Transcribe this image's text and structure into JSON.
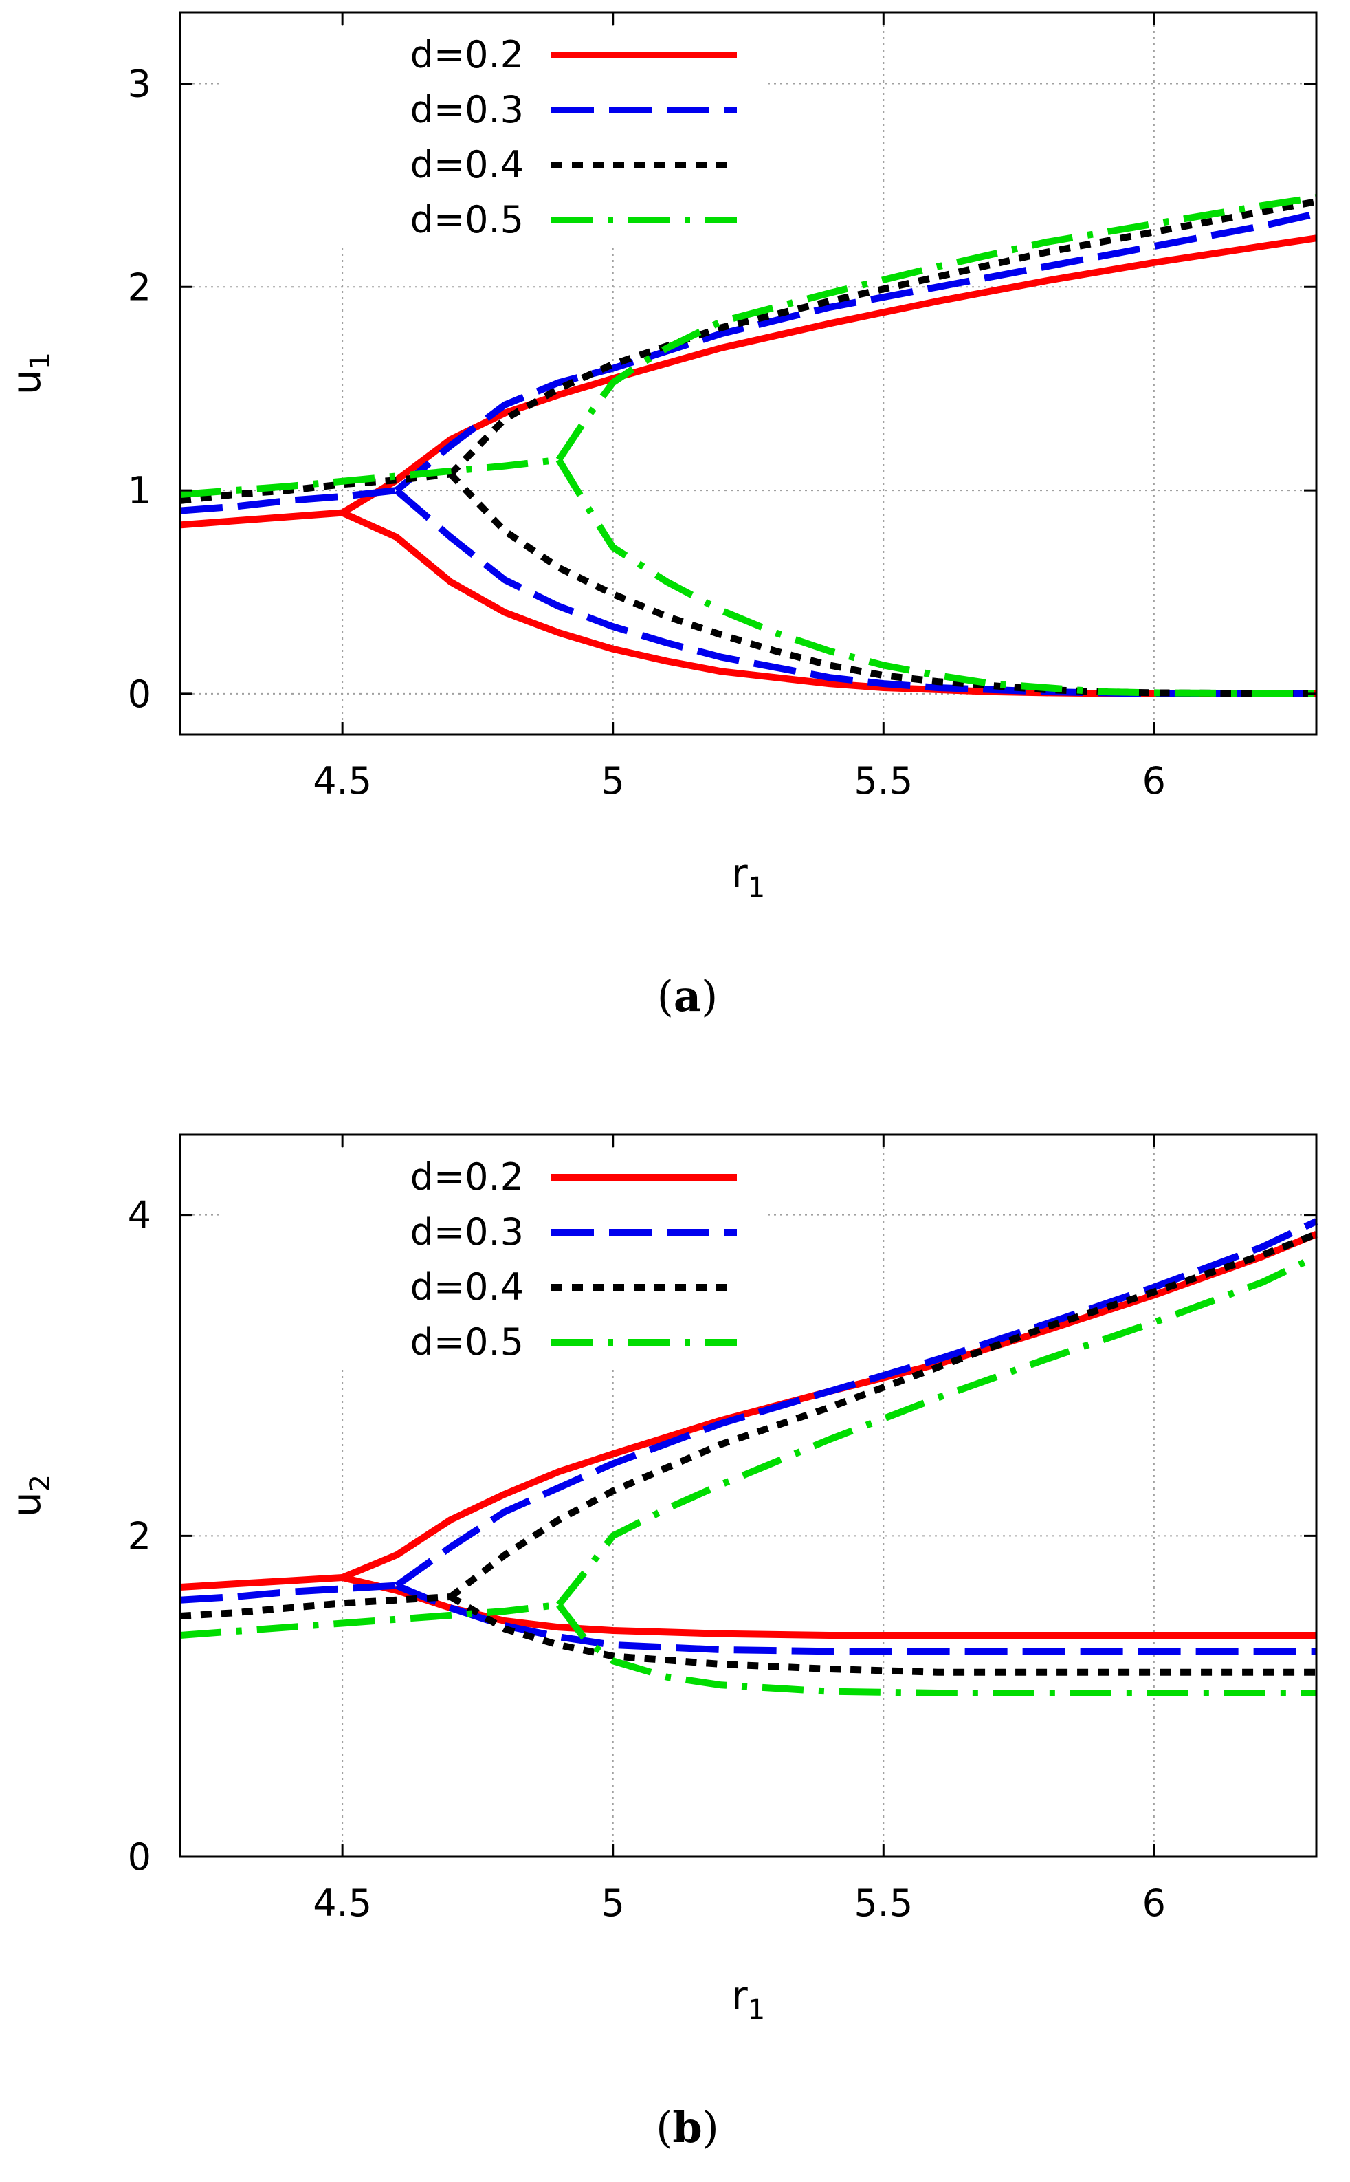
{
  "colors": {
    "d02": "#ff0000",
    "d03": "#0000ee",
    "d04": "#000000",
    "d05": "#00dd00"
  },
  "chart_data": [
    {
      "id": "a",
      "type": "line",
      "caption_open": "(",
      "caption_letter": "a",
      "caption_close": ")",
      "xlabel": "r",
      "xlabel_sub": "1",
      "ylabel": "u",
      "ylabel_sub": "1",
      "xlim": [
        4.2,
        6.3
      ],
      "ylim": [
        -0.2,
        3.35
      ],
      "xticks": [
        4.5,
        5,
        5.5,
        6
      ],
      "xtick_labels": [
        "4.5",
        "5",
        "5.5",
        "6"
      ],
      "yticks": [
        0,
        1,
        2,
        3
      ],
      "ytick_labels": [
        "0",
        "1",
        "2",
        "3"
      ],
      "grid": true,
      "legend_position": "top-left",
      "series": [
        {
          "name": "d=0.2",
          "color_key": "d02",
          "dash": "solid",
          "lines": [
            {
              "x": [
                4.2,
                4.3,
                4.4,
                4.5
              ],
              "y": [
                0.83,
                0.85,
                0.87,
                0.89
              ]
            },
            {
              "x": [
                4.5,
                4.6,
                4.7,
                4.8,
                4.9,
                5.0,
                5.2,
                5.4,
                5.6,
                5.8,
                6.0,
                6.2,
                6.3
              ],
              "y": [
                0.89,
                1.05,
                1.25,
                1.38,
                1.47,
                1.55,
                1.7,
                1.82,
                1.93,
                2.03,
                2.12,
                2.2,
                2.24
              ]
            },
            {
              "x": [
                4.5,
                4.6,
                4.7,
                4.8,
                4.9,
                5.0,
                5.1,
                5.2,
                5.3,
                5.4,
                5.5,
                5.6,
                5.7,
                5.8,
                5.9,
                6.0,
                6.3
              ],
              "y": [
                0.89,
                0.77,
                0.55,
                0.4,
                0.3,
                0.22,
                0.16,
                0.11,
                0.08,
                0.05,
                0.03,
                0.02,
                0.01,
                0.005,
                0.002,
                0.0,
                0.0
              ]
            }
          ]
        },
        {
          "name": "d=0.3",
          "color_key": "d03",
          "dash": "long-dash",
          "lines": [
            {
              "x": [
                4.2,
                4.3,
                4.4,
                4.5,
                4.6
              ],
              "y": [
                0.9,
                0.92,
                0.95,
                0.97,
                1.0
              ]
            },
            {
              "x": [
                4.6,
                4.7,
                4.8,
                4.9,
                5.0,
                5.2,
                5.4,
                5.6,
                5.8,
                6.0,
                6.2,
                6.3
              ],
              "y": [
                1.0,
                1.22,
                1.42,
                1.53,
                1.6,
                1.77,
                1.9,
                2.0,
                2.1,
                2.2,
                2.3,
                2.36
              ]
            },
            {
              "x": [
                4.6,
                4.7,
                4.8,
                4.9,
                5.0,
                5.1,
                5.2,
                5.3,
                5.4,
                5.5,
                5.6,
                5.7,
                5.8,
                5.9,
                6.0,
                6.3
              ],
              "y": [
                1.0,
                0.77,
                0.56,
                0.43,
                0.33,
                0.25,
                0.18,
                0.13,
                0.08,
                0.05,
                0.03,
                0.02,
                0.01,
                0.005,
                0.0,
                0.0
              ]
            }
          ]
        },
        {
          "name": "d=0.4",
          "color_key": "d04",
          "dash": "short-dash",
          "lines": [
            {
              "x": [
                4.2,
                4.3,
                4.4,
                4.5,
                4.6,
                4.7
              ],
              "y": [
                0.95,
                0.98,
                1.0,
                1.03,
                1.05,
                1.08
              ]
            },
            {
              "x": [
                4.7,
                4.8,
                4.9,
                5.0,
                5.2,
                5.4,
                5.6,
                5.8,
                6.0,
                6.2,
                6.3
              ],
              "y": [
                1.08,
                1.35,
                1.5,
                1.62,
                1.8,
                1.93,
                2.05,
                2.17,
                2.27,
                2.37,
                2.42
              ]
            },
            {
              "x": [
                4.7,
                4.8,
                4.9,
                5.0,
                5.1,
                5.2,
                5.3,
                5.4,
                5.5,
                5.6,
                5.7,
                5.8,
                5.9,
                6.0,
                6.3
              ],
              "y": [
                1.08,
                0.8,
                0.62,
                0.49,
                0.38,
                0.29,
                0.21,
                0.14,
                0.09,
                0.06,
                0.04,
                0.02,
                0.01,
                0.005,
                0.0
              ]
            }
          ]
        },
        {
          "name": "d=0.5",
          "color_key": "d05",
          "dash": "dash-dot",
          "lines": [
            {
              "x": [
                4.2,
                4.4,
                4.6,
                4.8,
                4.9
              ],
              "y": [
                0.98,
                1.02,
                1.07,
                1.12,
                1.15
              ]
            },
            {
              "x": [
                4.9,
                4.95,
                5.0,
                5.05,
                5.1,
                5.2,
                5.4,
                5.6,
                5.8,
                6.0,
                6.2,
                6.3
              ],
              "y": [
                1.15,
                1.35,
                1.53,
                1.62,
                1.7,
                1.83,
                1.97,
                2.1,
                2.22,
                2.31,
                2.4,
                2.44
              ]
            },
            {
              "x": [
                4.9,
                4.95,
                5.0,
                5.1,
                5.2,
                5.3,
                5.4,
                5.5,
                5.6,
                5.7,
                5.8,
                5.9,
                6.0,
                6.3
              ],
              "y": [
                1.15,
                0.93,
                0.72,
                0.55,
                0.41,
                0.3,
                0.21,
                0.14,
                0.09,
                0.05,
                0.03,
                0.01,
                0.005,
                0.0
              ]
            }
          ]
        }
      ]
    },
    {
      "id": "b",
      "type": "line",
      "caption_open": "(",
      "caption_letter": "b",
      "caption_close": ")",
      "xlabel": "r",
      "xlabel_sub": "1",
      "ylabel": "u",
      "ylabel_sub": "2",
      "xlim": [
        4.2,
        6.3
      ],
      "ylim": [
        0,
        4.5
      ],
      "xticks": [
        4.5,
        5,
        5.5,
        6
      ],
      "xtick_labels": [
        "4.5",
        "5",
        "5.5",
        "6"
      ],
      "yticks": [
        0,
        2,
        4
      ],
      "ytick_labels": [
        "0",
        "2",
        "4"
      ],
      "grid": true,
      "legend_position": "top-left",
      "series": [
        {
          "name": "d=0.2",
          "color_key": "d02",
          "dash": "solid",
          "lines": [
            {
              "x": [
                4.2,
                4.3,
                4.4,
                4.5
              ],
              "y": [
                1.68,
                1.7,
                1.72,
                1.74
              ]
            },
            {
              "x": [
                4.5,
                4.6,
                4.7,
                4.8,
                4.9,
                5.0,
                5.2,
                5.4,
                5.6,
                5.8,
                6.0,
                6.2,
                6.3
              ],
              "y": [
                1.74,
                1.88,
                2.1,
                2.26,
                2.4,
                2.51,
                2.72,
                2.9,
                3.07,
                3.28,
                3.5,
                3.74,
                3.88
              ]
            },
            {
              "x": [
                4.5,
                4.6,
                4.7,
                4.8,
                4.9,
                5.0,
                5.2,
                5.4,
                5.6,
                5.8,
                6.0,
                6.3
              ],
              "y": [
                1.74,
                1.66,
                1.55,
                1.47,
                1.43,
                1.41,
                1.39,
                1.38,
                1.38,
                1.38,
                1.38,
                1.38
              ]
            }
          ]
        },
        {
          "name": "d=0.3",
          "color_key": "d03",
          "dash": "long-dash",
          "lines": [
            {
              "x": [
                4.2,
                4.3,
                4.4,
                4.5,
                4.6
              ],
              "y": [
                1.6,
                1.62,
                1.65,
                1.67,
                1.69
              ]
            },
            {
              "x": [
                4.6,
                4.7,
                4.8,
                4.9,
                5.0,
                5.2,
                5.4,
                5.6,
                5.8,
                6.0,
                6.2,
                6.3
              ],
              "y": [
                1.69,
                1.93,
                2.15,
                2.3,
                2.45,
                2.7,
                2.9,
                3.1,
                3.32,
                3.55,
                3.8,
                3.96
              ]
            },
            {
              "x": [
                4.6,
                4.7,
                4.8,
                4.9,
                5.0,
                5.2,
                5.4,
                5.6,
                5.8,
                6.0,
                6.3
              ],
              "y": [
                1.69,
                1.55,
                1.44,
                1.37,
                1.32,
                1.29,
                1.28,
                1.28,
                1.28,
                1.28,
                1.28
              ]
            }
          ]
        },
        {
          "name": "d=0.4",
          "color_key": "d04",
          "dash": "short-dash",
          "lines": [
            {
              "x": [
                4.2,
                4.3,
                4.4,
                4.5,
                4.6,
                4.7
              ],
              "y": [
                1.5,
                1.52,
                1.55,
                1.58,
                1.6,
                1.62
              ]
            },
            {
              "x": [
                4.7,
                4.8,
                4.9,
                5.0,
                5.2,
                5.4,
                5.6,
                5.8,
                6.0,
                6.2,
                6.3
              ],
              "y": [
                1.62,
                1.88,
                2.1,
                2.28,
                2.57,
                2.8,
                3.05,
                3.3,
                3.52,
                3.75,
                3.88
              ]
            },
            {
              "x": [
                4.7,
                4.8,
                4.9,
                5.0,
                5.2,
                5.4,
                5.6,
                5.8,
                6.0,
                6.3
              ],
              "y": [
                1.62,
                1.42,
                1.32,
                1.25,
                1.2,
                1.17,
                1.15,
                1.15,
                1.15,
                1.15
              ]
            }
          ]
        },
        {
          "name": "d=0.5",
          "color_key": "d05",
          "dash": "dash-dot",
          "lines": [
            {
              "x": [
                4.2,
                4.4,
                4.6,
                4.8,
                4.9
              ],
              "y": [
                1.38,
                1.43,
                1.48,
                1.53,
                1.57
              ]
            },
            {
              "x": [
                4.9,
                4.95,
                5.0,
                5.1,
                5.2,
                5.4,
                5.6,
                5.8,
                6.0,
                6.2,
                6.3
              ],
              "y": [
                1.57,
                1.78,
                2.0,
                2.17,
                2.32,
                2.6,
                2.86,
                3.1,
                3.33,
                3.58,
                3.74
              ]
            },
            {
              "x": [
                4.9,
                4.95,
                5.0,
                5.1,
                5.2,
                5.3,
                5.4,
                5.6,
                5.8,
                6.0,
                6.3
              ],
              "y": [
                1.57,
                1.35,
                1.22,
                1.12,
                1.07,
                1.05,
                1.03,
                1.02,
                1.02,
                1.02,
                1.02
              ]
            }
          ]
        }
      ]
    }
  ]
}
